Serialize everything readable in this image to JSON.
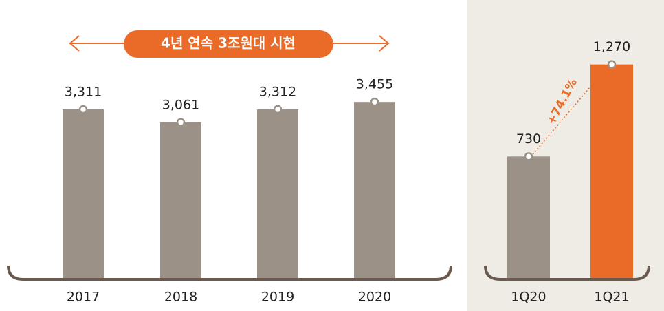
{
  "chart_data": [
    {
      "type": "bar",
      "annotation": "4년 연속 3조원대 시현",
      "categories": [
        "2017",
        "2018",
        "2019",
        "2020"
      ],
      "values": [
        3311,
        3061,
        3312,
        3455
      ],
      "value_labels": [
        "3,311",
        "3,061",
        "3,312",
        "3,455"
      ],
      "color": "#9b9187",
      "annotation_color": "#ea6b28"
    },
    {
      "type": "bar",
      "annotation": "+74.1%",
      "categories": [
        "1Q20",
        "1Q21"
      ],
      "values": [
        730,
        1270
      ],
      "value_labels": [
        "730",
        "1,270"
      ],
      "colors": [
        "#9b9187",
        "#ea6b28"
      ],
      "annotation_color": "#ea6b28",
      "background": "#efebe5"
    }
  ]
}
